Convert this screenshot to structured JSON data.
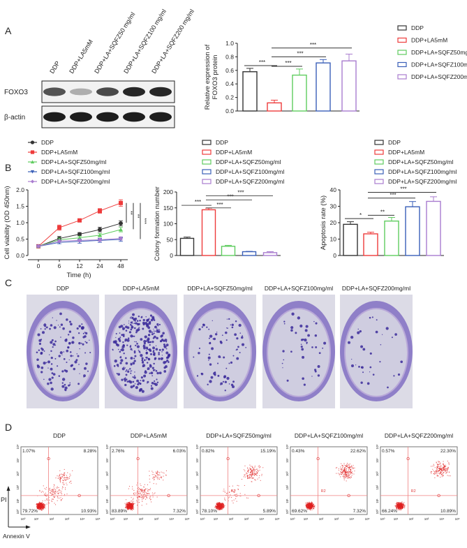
{
  "panel_labels": {
    "a": "A",
    "b": "B",
    "c": "C",
    "d": "D"
  },
  "groups": [
    "DDP",
    "DDP+LA5mM",
    "DDP+LA+SQFZ50mg/ml",
    "DDP+LA+SQFZ100mg/ml",
    "DDP+LA+SQFZ200mg/ml"
  ],
  "colors": [
    "#333333",
    "#ee3b3b",
    "#5fcc5f",
    "#3a5fb8",
    "#a97ccf"
  ],
  "western_blot": {
    "lanes": [
      "DDP",
      "DDP+LA5mM",
      "DDP+LA+SQFZ50 mg/ml",
      "DDP+LA+SQFZ100 mg/ml",
      "DDP+LA+SQFZ200 mg/ml"
    ],
    "rows": [
      "FOXO3",
      "β-actin"
    ],
    "band_intensity": {
      "FOXO3": [
        0.7,
        0.3,
        0.75,
        0.9,
        0.9
      ],
      "actin": [
        0.95,
        0.95,
        0.95,
        0.95,
        0.95
      ]
    }
  },
  "chart_data": [
    {
      "id": "foxo3",
      "type": "bar",
      "title": "",
      "ylabel": [
        "Relative expression of",
        "FOXO3 protein"
      ],
      "ylim": [
        0,
        1.0
      ],
      "yticks": [
        "0.0",
        "0.2",
        "0.4",
        "0.6",
        "0.8",
        "1.0"
      ],
      "ytick_values": [
        0,
        0.2,
        0.4,
        0.6,
        0.8,
        1.0
      ],
      "values": [
        0.58,
        0.12,
        0.53,
        0.71,
        0.74
      ],
      "errors": [
        0.05,
        0.04,
        0.09,
        0.05,
        0.1
      ],
      "significance": [
        {
          "groups": [
            0,
            1
          ],
          "label": "***"
        },
        {
          "groups": [
            1,
            2
          ],
          "label": "***"
        },
        {
          "groups": [
            1,
            3
          ],
          "label": "***"
        },
        {
          "groups": [
            1,
            4
          ],
          "label": "***"
        }
      ],
      "legend": "right"
    },
    {
      "id": "viability",
      "type": "line",
      "ylabel": "Cell viability (OD 450nm)",
      "xlabel": "Time (h)",
      "x": [
        "0",
        "6",
        "12",
        "24",
        "48"
      ],
      "ylim": [
        0,
        2.0
      ],
      "yticks": [
        "0.0",
        "0.5",
        "1.0",
        "1.5",
        "2.0"
      ],
      "ytick_values": [
        0,
        0.5,
        1.0,
        1.5,
        2.0
      ],
      "series": [
        {
          "values": [
            0.28,
            0.52,
            0.65,
            0.79,
            0.98
          ],
          "errors": [
            0.03,
            0.06,
            0.05,
            0.07,
            0.08
          ],
          "marker": "circle"
        },
        {
          "values": [
            0.28,
            0.85,
            1.07,
            1.36,
            1.6
          ],
          "errors": [
            0.03,
            0.08,
            0.04,
            0.07,
            0.1
          ],
          "marker": "square"
        },
        {
          "values": [
            0.28,
            0.48,
            0.54,
            0.62,
            0.79
          ],
          "errors": [
            0.03,
            0.05,
            0.05,
            0.05,
            0.07
          ],
          "marker": "triangle-up"
        },
        {
          "values": [
            0.28,
            0.4,
            0.43,
            0.46,
            0.49
          ],
          "errors": [
            0.03,
            0.04,
            0.06,
            0.06,
            0.06
          ],
          "marker": "triangle-down"
        },
        {
          "values": [
            0.28,
            0.44,
            0.46,
            0.48,
            0.52
          ],
          "errors": [
            0.03,
            0.04,
            0.04,
            0.05,
            0.05
          ],
          "marker": "diamond"
        }
      ],
      "significance": [
        {
          "range": [
            1.6,
            1.0
          ],
          "label": "**"
        },
        {
          "range": [
            1.6,
            0.8
          ],
          "label": "**"
        },
        {
          "range": [
            1.6,
            0.5
          ],
          "label": "***"
        }
      ],
      "legend": "top"
    },
    {
      "id": "colony",
      "type": "bar",
      "ylabel": "Colony formation number",
      "ylim": [
        0,
        200
      ],
      "yticks": [
        "0",
        "50",
        "100",
        "150",
        "200"
      ],
      "ytick_values": [
        0,
        50,
        100,
        150,
        200
      ],
      "values": [
        54,
        144,
        29,
        12,
        9
      ],
      "errors": [
        4,
        5,
        3,
        1,
        3
      ],
      "significance": [
        {
          "groups": [
            0,
            1
          ],
          "label": "***"
        },
        {
          "groups": [
            1,
            2
          ],
          "label": "***"
        },
        {
          "groups": [
            1,
            3
          ],
          "label": "***"
        },
        {
          "groups": [
            1,
            4
          ],
          "label": "***"
        }
      ],
      "legend": "top"
    },
    {
      "id": "apoptosis",
      "type": "bar",
      "ylabel": "Apoptosis rate (%)",
      "ylim": [
        0,
        40
      ],
      "yticks": [
        "0",
        "10",
        "20",
        "30",
        "40"
      ],
      "ytick_values": [
        0,
        10,
        20,
        30,
        40
      ],
      "values": [
        19,
        13.2,
        21,
        29.7,
        33
      ],
      "errors": [
        1.6,
        1.0,
        2.2,
        3.2,
        2.8
      ],
      "significance": [
        {
          "groups": [
            0,
            1
          ],
          "label": "*"
        },
        {
          "groups": [
            1,
            2
          ],
          "label": "**"
        },
        {
          "groups": [
            1,
            3
          ],
          "label": "***"
        },
        {
          "groups": [
            1,
            4
          ],
          "label": "***"
        }
      ],
      "legend": "top"
    },
    {
      "id": "flow",
      "type": "scatter",
      "xlabel": "Annexin V",
      "ylabel": "PI",
      "axis_ticks": [
        "10⁰",
        "10¹",
        "10²",
        "10³",
        "10⁴",
        "10⁵"
      ],
      "gate_label": "R2",
      "samples": [
        {
          "title": "DDP",
          "UL": "1.07%",
          "UR": "8.28%",
          "LL": "79.72%",
          "LR": "10.93%"
        },
        {
          "title": "DDP+LA5mM",
          "UL": "2.76%",
          "UR": "6.03%",
          "LL": "83.89%",
          "LR": "7.32%"
        },
        {
          "title": "DDP+LA+SQFZ50mg/ml",
          "UL": "0.82%",
          "UR": "15.19%",
          "LL": "78.10%",
          "LR": "5.89%"
        },
        {
          "title": "DDP+LA+SQFZ100mg/ml",
          "UL": "0.43%",
          "UR": "22.62%",
          "LL": "69.62%",
          "LR": "7.32%"
        },
        {
          "title": "DDP+LA+SQFZ200mg/ml",
          "UL": "0.57%",
          "UR": "22.30%",
          "LL": "66.24%",
          "LR": "10.89%"
        }
      ]
    }
  ],
  "colony_plates": {
    "titles": [
      "DDP",
      "DDP+LA5mM",
      "DDP+LA+SQFZ50mg/ml",
      "DDP+LA+SQFZ100mg/ml",
      "DDP+LA+SQFZ200mg/ml"
    ]
  }
}
